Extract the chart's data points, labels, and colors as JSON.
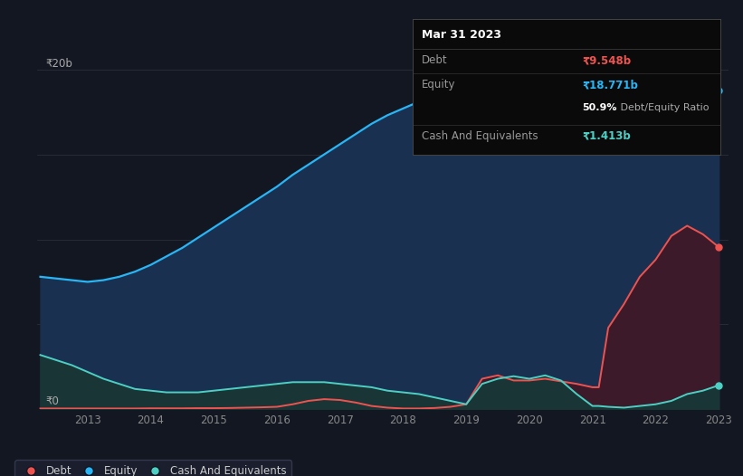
{
  "background_color": "#131722",
  "plot_bg_color": "#131722",
  "grid_color": "#2a2e39",
  "years": [
    2012.25,
    2012.5,
    2012.75,
    2013.0,
    2013.25,
    2013.5,
    2013.75,
    2014.0,
    2014.25,
    2014.5,
    2014.75,
    2015.0,
    2015.25,
    2015.5,
    2015.75,
    2016.0,
    2016.25,
    2016.5,
    2016.75,
    2017.0,
    2017.25,
    2017.5,
    2017.75,
    2018.0,
    2018.25,
    2018.5,
    2018.75,
    2019.0,
    2019.25,
    2019.5,
    2019.75,
    2020.0,
    2020.25,
    2020.5,
    2020.75,
    2021.0,
    2021.1,
    2021.25,
    2021.5,
    2021.75,
    2022.0,
    2022.25,
    2022.5,
    2022.75,
    2023.0
  ],
  "equity": [
    7.8,
    7.7,
    7.6,
    7.5,
    7.6,
    7.8,
    8.1,
    8.5,
    9.0,
    9.5,
    10.1,
    10.7,
    11.3,
    11.9,
    12.5,
    13.1,
    13.8,
    14.4,
    15.0,
    15.6,
    16.2,
    16.8,
    17.3,
    17.7,
    18.1,
    18.5,
    18.8,
    19.1,
    19.3,
    19.2,
    19.0,
    19.3,
    19.1,
    18.8,
    18.5,
    18.2,
    17.5,
    16.8,
    16.2,
    15.8,
    15.3,
    16.0,
    17.0,
    17.8,
    18.771
  ],
  "debt": [
    0.05,
    0.05,
    0.05,
    0.05,
    0.05,
    0.05,
    0.05,
    0.06,
    0.06,
    0.06,
    0.07,
    0.07,
    0.08,
    0.1,
    0.12,
    0.15,
    0.3,
    0.5,
    0.6,
    0.55,
    0.4,
    0.2,
    0.1,
    0.05,
    0.05,
    0.08,
    0.15,
    0.3,
    1.8,
    2.0,
    1.7,
    1.7,
    1.8,
    1.65,
    1.5,
    1.3,
    1.3,
    4.8,
    6.2,
    7.8,
    8.8,
    10.2,
    10.8,
    10.3,
    9.548
  ],
  "cash": [
    3.2,
    2.9,
    2.6,
    2.2,
    1.8,
    1.5,
    1.2,
    1.1,
    1.0,
    1.0,
    1.0,
    1.1,
    1.2,
    1.3,
    1.4,
    1.5,
    1.6,
    1.6,
    1.6,
    1.5,
    1.4,
    1.3,
    1.1,
    1.0,
    0.9,
    0.7,
    0.5,
    0.3,
    1.5,
    1.8,
    1.95,
    1.8,
    2.0,
    1.7,
    0.9,
    0.2,
    0.2,
    0.15,
    0.1,
    0.2,
    0.3,
    0.5,
    0.9,
    1.1,
    1.413
  ],
  "ylim": [
    0,
    21
  ],
  "y_label_20b": "₹20b",
  "y_label_0": "₹0",
  "x_ticks": [
    2013,
    2014,
    2015,
    2016,
    2017,
    2018,
    2019,
    2020,
    2021,
    2022,
    2023
  ],
  "equity_color": "#29b6f6",
  "equity_fill": "#1a3050",
  "debt_color": "#ef5350",
  "debt_fill": "#3d1a2a",
  "cash_color": "#4dd0c4",
  "cash_fill": "#1a3535",
  "legend_items": [
    "Debt",
    "Equity",
    "Cash And Equivalents"
  ],
  "tooltip": {
    "date": "Mar 31 2023",
    "debt_label": "Debt",
    "debt_val": "₹9.548b",
    "equity_label": "Equity",
    "equity_val": "₹18.771b",
    "ratio": "50.9%",
    "ratio_suffix": " Debt/Equity Ratio",
    "cash_label": "Cash And Equivalents",
    "cash_val": "₹1.413b"
  }
}
